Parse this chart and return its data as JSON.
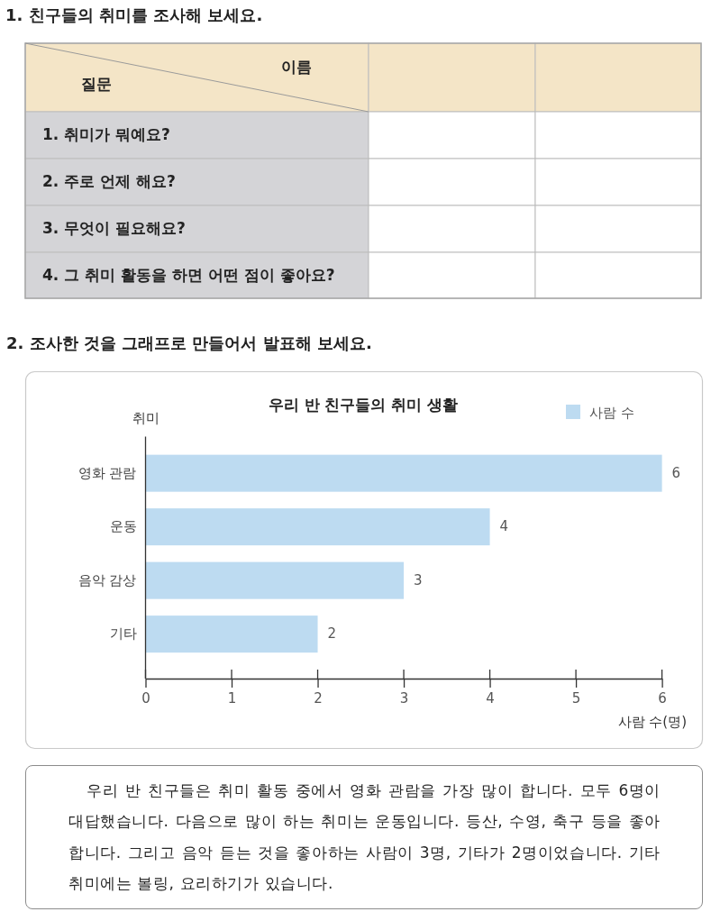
{
  "chart_data": [
    {
      "type": "other",
      "title": "1. 친구들의 취미를 조사해 보세요.",
      "annotations": [
        "이름",
        "질문",
        "1. 취미가 뭐예요?",
        "2. 주로 언제 해요?",
        "3. 무엇이 필요해요?",
        "4. 그 취미 활동을 하면 어떤 점이 좋아요?"
      ]
    },
    {
      "type": "bar",
      "orientation": "horizontal",
      "title": "우리 반 친구들의 취미 생활",
      "categories": [
        "영화 관람",
        "운동",
        "음악 감상",
        "기타"
      ],
      "series": [
        {
          "name": "사람 수",
          "color": "#bddbf1",
          "values": [
            6,
            4,
            3,
            2
          ]
        }
      ],
      "xlim": [
        0,
        6
      ],
      "xticks": [
        0,
        1,
        2,
        3,
        4,
        5,
        6
      ],
      "xlabel": "사람 수(명)",
      "ylabel": "취미",
      "legend": "top right",
      "data_labels": true,
      "annotations": [
        "2. 조사한 것을 그래프로 만들어서 발표해 보세요."
      ]
    },
    {
      "type": "other",
      "annotations": [
        "우리 반 친구들은 취미 활동 중에서 영화 관람을 가장 많이 합니다. 모두 6명이 대답했습니다. 다음으로 많이 하는 취미는 운동입니다. 등산, 수영, 축구 등을 좋아합니다. 그리고 음악 듣는 것을 좋아하는 사람이 3명, 기타가 2명이었습니다. 기타 취미에는 볼링, 요리하기가 있습니다."
      ]
    }
  ]
}
